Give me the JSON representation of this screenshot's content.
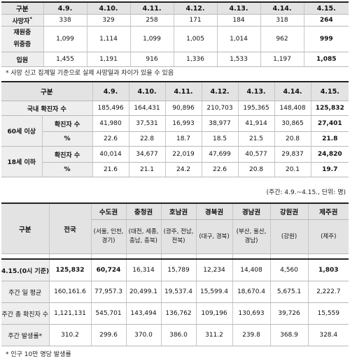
{
  "table1": {
    "header": [
      "구분",
      "4.9.",
      "4.10.",
      "4.11.",
      "4.12.",
      "4.13.",
      "4.14.",
      "4.15."
    ],
    "rows": [
      {
        "label": "사망자",
        "sup": "*",
        "values": [
          "338",
          "329",
          "258",
          "171",
          "184",
          "318",
          "264"
        ]
      },
      {
        "label_line1": "재원중",
        "label_line2": "위중증",
        "values": [
          "1,099",
          "1,114",
          "1,099",
          "1,005",
          "1,014",
          "962",
          "999"
        ]
      },
      {
        "label": "입원",
        "values": [
          "1,455",
          "1,191",
          "916",
          "1,336",
          "1,533",
          "1,197",
          "1,085"
        ]
      }
    ],
    "note": "* 사망 신고 집계일 기준으로 실제 사망일과 차이가 있을 수 있음"
  },
  "table2": {
    "header": [
      "구분",
      "4.9.",
      "4.10.",
      "4.11.",
      "4.12.",
      "4.13.",
      "4.14.",
      "4.15."
    ],
    "domestic": {
      "label": "국내 확진자 수",
      "values": [
        "185,496",
        "164,431",
        "90,896",
        "210,703",
        "195,365",
        "148,408",
        "125,832"
      ]
    },
    "over60": {
      "group": "60세 이상",
      "count_label": "확진자 수",
      "count": [
        "41,980",
        "37,531",
        "16,993",
        "38,977",
        "41,914",
        "30,865",
        "27,401"
      ],
      "pct_label": "%",
      "pct": [
        "22.6",
        "22.8",
        "18.7",
        "18.5",
        "21.5",
        "20.8",
        "21.8"
      ]
    },
    "under18": {
      "group": "18세 이하",
      "count_label": "확진자 수",
      "count": [
        "40,014",
        "34,677",
        "22,019",
        "47,699",
        "40,577",
        "29,837",
        "24,820"
      ],
      "pct_label": "%",
      "pct": [
        "21.6",
        "21.1",
        "24.2",
        "22.6",
        "20.8",
        "20.1",
        "19.7"
      ]
    },
    "unit": "(주간: 4.9.~4.15., 단위: 명)"
  },
  "table3": {
    "corner": "구분",
    "national": "전국",
    "regions": [
      {
        "name": "수도권",
        "sub": "(서울, 인천, 경기)"
      },
      {
        "name": "충청권",
        "sub": "(대전, 세종, 충남, 충북)"
      },
      {
        "name": "호남권",
        "sub": "(광주, 전남, 전북)"
      },
      {
        "name": "경북권",
        "sub": "(대구, 경북)"
      },
      {
        "name": "경남권",
        "sub": "(부산, 울산, 경남)"
      },
      {
        "name": "강원권",
        "sub": "(강원)"
      },
      {
        "name": "제주권",
        "sub": "(제주)"
      }
    ],
    "rows": [
      {
        "label": "4.15.(0시 기준)",
        "values": [
          "125,832",
          "60,724",
          "16,314",
          "15,789",
          "12,234",
          "14,408",
          "4,560",
          "1,803"
        ]
      },
      {
        "label": "주간 일 평균",
        "values": [
          "160,161.6",
          "77,957.3",
          "20,499.1",
          "19,537.4",
          "15,599.4",
          "18,670.4",
          "5,675.1",
          "2,222.7"
        ]
      },
      {
        "label": "주간 총 확진자 수",
        "values": [
          "1,121,131",
          "545,701",
          "143,494",
          "136,762",
          "109,196",
          "130,693",
          "39,726",
          "15,559"
        ]
      },
      {
        "label": "주간 발생률*",
        "values": [
          "310.2",
          "299.6",
          "370.0",
          "386.0",
          "311.2",
          "239.8",
          "368.9",
          "328.4"
        ]
      }
    ],
    "note": "* 인구 10만 명당 발생률"
  }
}
